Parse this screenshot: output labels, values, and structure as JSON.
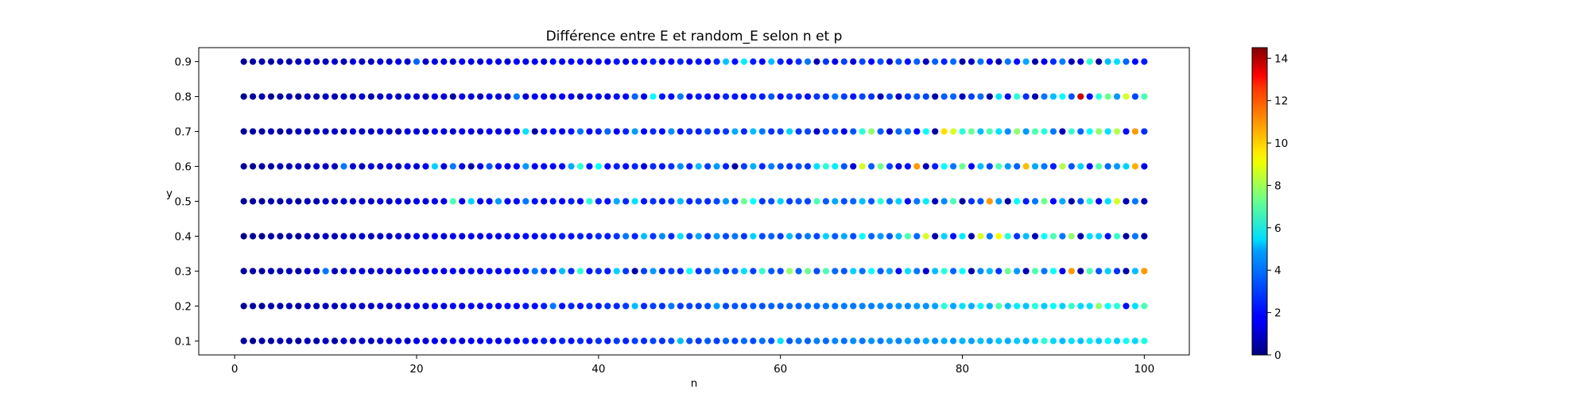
{
  "chart_data": {
    "type": "scatter",
    "title": "Différence entre E et random_E selon n et p",
    "xlabel": "n",
    "ylabel": "y",
    "x_range": [
      1,
      100
    ],
    "x_step": 1,
    "y_levels": [
      0.1,
      0.2,
      0.3,
      0.4,
      0.5,
      0.6,
      0.7,
      0.8,
      0.9
    ],
    "xlim": [
      -3.95,
      104.95
    ],
    "ylim": [
      0.06,
      0.94
    ],
    "x_ticks": [
      0,
      20,
      40,
      60,
      80,
      100
    ],
    "y_ticks": [
      0.1,
      0.2,
      0.3,
      0.4,
      0.5,
      0.6,
      0.7,
      0.8,
      0.9
    ],
    "colorbar": {
      "colormap": "jet",
      "min": 0,
      "max": 14.5,
      "ticks": [
        0,
        2,
        4,
        6,
        8,
        10,
        12,
        14
      ]
    },
    "grid": false,
    "rows": {
      "0.9": [
        0.3,
        0.5,
        0.7,
        0.4,
        0.9,
        0.6,
        0.8,
        1.0,
        0.7,
        0.9,
        1.1,
        0.8,
        1.2,
        1.0,
        0.9,
        1.3,
        1.1,
        1.4,
        1.2,
        3.2,
        1.0,
        1.5,
        1.3,
        1.1,
        1.6,
        1.4,
        1.2,
        1.7,
        1.5,
        1.3,
        1.8,
        1.4,
        1.6,
        1.2,
        1.9,
        1.5,
        1.7,
        2.0,
        1.3,
        1.8,
        1.6,
        2.1,
        1.4,
        2.0,
        1.7,
        2.2,
        1.5,
        1.9,
        2.3,
        1.6,
        2.1,
        1.8,
        2.4,
        4.6,
        2.0,
        5.2,
        2.2,
        1.9,
        4.5,
        2.3,
        1.7,
        2.5,
        3.5,
        0.8,
        2.6,
        1.5,
        2.7,
        1.3,
        2.8,
        1.9,
        2.9,
        1.2,
        3.0,
        2.1,
        3.1,
        0.9,
        3.2,
        2.3,
        3.3,
        0.5,
        1.0,
        3.4,
        1.8,
        0.7,
        3.5,
        2.0,
        4.2,
        0.6,
        1.6,
        2.4,
        3.6,
        0.8,
        1.1,
        6.0,
        0.4,
        4.5,
        5.0,
        3.2,
        1.9,
        2.2
      ],
      "0.8": [
        0.2,
        0.4,
        0.6,
        0.3,
        0.5,
        0.7,
        0.4,
        0.8,
        0.6,
        1.0,
        0.7,
        0.9,
        0.8,
        1.1,
        0.6,
        1.0,
        1.2,
        0.9,
        1.3,
        1.1,
        0.8,
        1.4,
        1.2,
        0.5,
        1.5,
        1.3,
        1.0,
        1.6,
        1.4,
        1.1,
        3.5,
        1.2,
        1.7,
        1.5,
        1.3,
        1.8,
        1.6,
        0.9,
        1.9,
        1.7,
        1.4,
        2.0,
        1.8,
        3.2,
        1.5,
        5.5,
        2.1,
        1.9,
        3.5,
        1.6,
        2.2,
        2.0,
        1.7,
        2.3,
        2.1,
        1.8,
        2.4,
        2.2,
        3.0,
        1.9,
        2.5,
        2.3,
        2.0,
        2.6,
        2.4,
        3.5,
        2.7,
        2.1,
        2.8,
        2.5,
        0.8,
        2.9,
        1.0,
        2.6,
        3.0,
        2.8,
        0.6,
        3.1,
        3.2,
        0.9,
        2.7,
        3.3,
        0.5,
        5.0,
        1.9,
        6.0,
        2.5,
        0.7,
        3.5,
        4.5,
        5.5,
        3.0,
        13.5,
        2.0,
        6.0,
        7.0,
        4.0,
        8.5,
        2.8,
        6.5
      ],
      "0.7": [
        0.3,
        0.6,
        0.5,
        0.8,
        0.4,
        0.7,
        0.9,
        0.6,
        1.0,
        0.8,
        1.1,
        0.7,
        1.2,
        0.9,
        1.0,
        1.3,
        1.1,
        0.8,
        1.4,
        1.2,
        1.0,
        1.5,
        1.3,
        1.1,
        1.6,
        1.4,
        1.2,
        1.7,
        1.5,
        1.3,
        1.8,
        5.0,
        0.5,
        1.9,
        2.0,
        1.6,
        2.1,
        3.5,
        1.7,
        2.2,
        3.2,
        1.8,
        2.3,
        4.0,
        1.9,
        2.4,
        2.0,
        3.8,
        2.1,
        2.5,
        2.2,
        3.0,
        2.3,
        2.6,
        4.2,
        2.4,
        4.5,
        3.5,
        2.5,
        2.7,
        4.8,
        2.6,
        2.8,
        1.0,
        2.7,
        2.9,
        1.5,
        3.0,
        6.0,
        7.5,
        3.1,
        1.2,
        3.2,
        3.5,
        2.0,
        5.5,
        0.5,
        9.5,
        8.5,
        6.0,
        7.0,
        4.5,
        6.5,
        5.0,
        3.8,
        7.5,
        4.0,
        6.5,
        6.0,
        3.5,
        0.8,
        6.2,
        3.2,
        5.5,
        7.5,
        5.0,
        8.0,
        2.0,
        10.5,
        2.5
      ],
      "0.6": [
        0.4,
        0.3,
        0.6,
        0.5,
        0.8,
        0.7,
        0.9,
        0.6,
        1.1,
        1.0,
        0.8,
        3.5,
        1.2,
        1.0,
        1.3,
        1.1,
        1.4,
        0.9,
        1.5,
        1.2,
        1.6,
        4.8,
        1.3,
        3.5,
        1.4,
        0.7,
        1.6,
        3.0,
        1.7,
        1.5,
        1.8,
        4.0,
        1.6,
        1.9,
        1.7,
        2.0,
        4.2,
        6.0,
        2.1,
        5.5,
        1.9,
        2.2,
        2.0,
        2.3,
        1.3,
        2.4,
        2.1,
        2.5,
        3.8,
        2.2,
        4.5,
        2.6,
        4.0,
        2.3,
        0.5,
        2.7,
        4.3,
        2.4,
        3.6,
        2.8,
        2.5,
        2.9,
        2.6,
        5.0,
        6.0,
        5.2,
        3.0,
        1.2,
        8.5,
        3.1,
        7.0,
        2.7,
        1.5,
        2.0,
        10.5,
        0.8,
        2.2,
        5.5,
        3.5,
        7.0,
        1.6,
        4.5,
        2.8,
        6.5,
        4.0,
        3.2,
        10.0,
        4.2,
        3.5,
        2.2,
        8.0,
        3.0,
        4.8,
        2.0,
        6.5,
        3.3,
        4.0,
        4.8,
        10.2,
        1.5
      ],
      "0.5": [
        0.3,
        0.5,
        0.4,
        0.7,
        0.6,
        0.8,
        0.5,
        0.9,
        0.7,
        1.0,
        0.8,
        1.1,
        0.9,
        1.2,
        1.0,
        1.3,
        1.1,
        1.4,
        1.2,
        1.5,
        1.3,
        1.6,
        1.4,
        6.5,
        1.5,
        4.8,
        1.6,
        1.7,
        4.0,
        1.8,
        1.9,
        3.5,
        2.0,
        1.7,
        2.1,
        1.8,
        2.2,
        1.9,
        6.0,
        2.3,
        2.0,
        4.2,
        2.4,
        5.0,
        2.1,
        2.5,
        2.2,
        2.6,
        4.5,
        2.3,
        2.7,
        2.4,
        2.8,
        4.0,
        2.5,
        7.0,
        5.5,
        2.6,
        2.9,
        4.8,
        2.7,
        3.0,
        2.8,
        6.5,
        3.1,
        4.2,
        2.9,
        3.2,
        4.5,
        3.0,
        6.0,
        3.3,
        4.8,
        2.0,
        3.5,
        5.2,
        0.8,
        3.8,
        6.5,
        0.5,
        2.5,
        3.0,
        10.5,
        4.0,
        0.5,
        5.5,
        2.2,
        3.5,
        7.0,
        1.8,
        4.2,
        0.6,
        3.0,
        6.0,
        1.5,
        5.0,
        8.5,
        0.8,
        3.5,
        0.7
      ],
      "0.4": [
        0.2,
        0.4,
        0.3,
        0.6,
        0.5,
        0.7,
        0.4,
        0.8,
        0.6,
        0.9,
        0.7,
        1.0,
        0.8,
        1.1,
        0.9,
        1.2,
        1.0,
        1.3,
        1.1,
        1.4,
        1.2,
        1.5,
        1.3,
        1.6,
        1.4,
        1.7,
        1.5,
        1.8,
        1.6,
        1.9,
        1.7,
        2.0,
        1.8,
        2.1,
        1.9,
        2.2,
        2.0,
        2.3,
        2.1,
        2.4,
        2.2,
        2.5,
        3.5,
        2.3,
        4.5,
        2.6,
        3.8,
        2.4,
        5.0,
        2.7,
        4.2,
        2.5,
        4.0,
        2.8,
        3.5,
        2.6,
        4.8,
        2.9,
        3.2,
        2.7,
        4.5,
        3.0,
        3.6,
        2.8,
        4.8,
        3.1,
        4.2,
        2.9,
        5.5,
        3.2,
        4.0,
        3.0,
        4.5,
        6.5,
        3.3,
        8.5,
        0.5,
        4.8,
        2.0,
        5.2,
        0.6,
        8.5,
        3.5,
        9.0,
        6.0,
        2.5,
        4.5,
        0.8,
        5.5,
        6.5,
        3.5,
        7.5,
        0.7,
        5.0,
        4.8,
        2.0,
        6.2,
        0.5,
        3.5,
        0.5
      ],
      "0.3": [
        0.4,
        0.6,
        0.5,
        0.8,
        0.7,
        0.9,
        0.6,
        1.1,
        1.0,
        3.5,
        0.8,
        1.2,
        1.0,
        1.3,
        1.1,
        1.4,
        0.9,
        1.5,
        1.2,
        1.6,
        1.3,
        1.7,
        1.4,
        1.8,
        1.5,
        1.9,
        1.6,
        2.0,
        1.7,
        2.1,
        1.8,
        2.2,
        3.5,
        2.3,
        2.0,
        4.5,
        2.4,
        6.0,
        2.1,
        2.5,
        2.2,
        4.8,
        2.6,
        0.5,
        2.7,
        4.0,
        2.3,
        2.8,
        2.4,
        5.5,
        2.5,
        2.9,
        4.2,
        2.6,
        3.0,
        5.0,
        2.7,
        6.2,
        3.1,
        2.8,
        7.5,
        3.2,
        7.0,
        2.9,
        6.5,
        3.3,
        3.0,
        4.8,
        3.4,
        5.5,
        3.1,
        4.2,
        2.0,
        5.0,
        3.5,
        1.2,
        4.5,
        6.0,
        3.2,
        5.5,
        0.6,
        3.8,
        4.5,
        2.5,
        7.0,
        4.0,
        0.8,
        6.5,
        3.5,
        5.5,
        1.5,
        10.5,
        0.5,
        6.5,
        3.0,
        4.8,
        2.5,
        0.6,
        4.5,
        10.5
      ],
      "0.2": [
        0.3,
        0.5,
        0.4,
        0.7,
        0.6,
        0.8,
        0.5,
        0.9,
        0.7,
        1.0,
        0.8,
        1.1,
        0.9,
        1.2,
        1.0,
        1.3,
        1.1,
        1.4,
        1.2,
        1.5,
        1.3,
        1.6,
        1.4,
        1.7,
        1.5,
        1.8,
        1.6,
        1.9,
        1.7,
        2.0,
        1.8,
        2.1,
        1.9,
        2.2,
        3.5,
        2.0,
        2.3,
        2.1,
        2.4,
        2.2,
        2.5,
        2.3,
        2.6,
        4.5,
        2.4,
        2.7,
        2.5,
        3.5,
        2.6,
        2.8,
        2.7,
        2.9,
        4.0,
        2.8,
        3.0,
        2.9,
        3.1,
        3.0,
        3.2,
        3.1,
        3.3,
        3.2,
        3.4,
        3.3,
        3.5,
        3.4,
        3.6,
        3.5,
        3.7,
        3.6,
        3.8,
        3.7,
        3.9,
        3.8,
        4.0,
        3.9,
        4.1,
        6.0,
        4.2,
        5.0,
        4.3,
        5.5,
        4.4,
        6.5,
        4.5,
        5.2,
        4.6,
        6.0,
        4.7,
        5.5,
        4.8,
        6.2,
        4.9,
        5.0,
        7.5,
        5.5,
        6.0,
        2.0,
        5.0,
        6.5
      ],
      "0.1": [
        0.4,
        0.3,
        0.6,
        0.5,
        0.8,
        0.7,
        0.5,
        0.9,
        0.7,
        1.0,
        0.6,
        1.1,
        0.8,
        1.2,
        0.9,
        1.3,
        1.0,
        1.4,
        1.1,
        1.5,
        1.2,
        1.6,
        1.3,
        1.7,
        1.4,
        1.8,
        1.5,
        1.9,
        1.6,
        2.0,
        1.7,
        2.1,
        1.8,
        2.2,
        1.9,
        2.3,
        2.0,
        2.4,
        2.1,
        2.5,
        2.2,
        2.6,
        2.3,
        2.7,
        2.4,
        2.8,
        2.5,
        2.9,
        4.5,
        3.0,
        2.6,
        3.1,
        2.7,
        3.2,
        2.8,
        3.3,
        2.9,
        3.4,
        3.0,
        5.0,
        3.1,
        3.5,
        3.2,
        3.6,
        3.3,
        3.7,
        3.4,
        3.8,
        3.5,
        3.9,
        3.6,
        4.0,
        3.7,
        4.1,
        3.8,
        4.2,
        3.9,
        4.3,
        4.0,
        4.4,
        4.1,
        4.5,
        4.2,
        4.6,
        4.3,
        4.7,
        4.4,
        4.8,
        6.0,
        4.9,
        4.5,
        5.0,
        4.6,
        5.2,
        4.7,
        5.4,
        4.8,
        5.6,
        4.9,
        5.8
      ]
    }
  }
}
